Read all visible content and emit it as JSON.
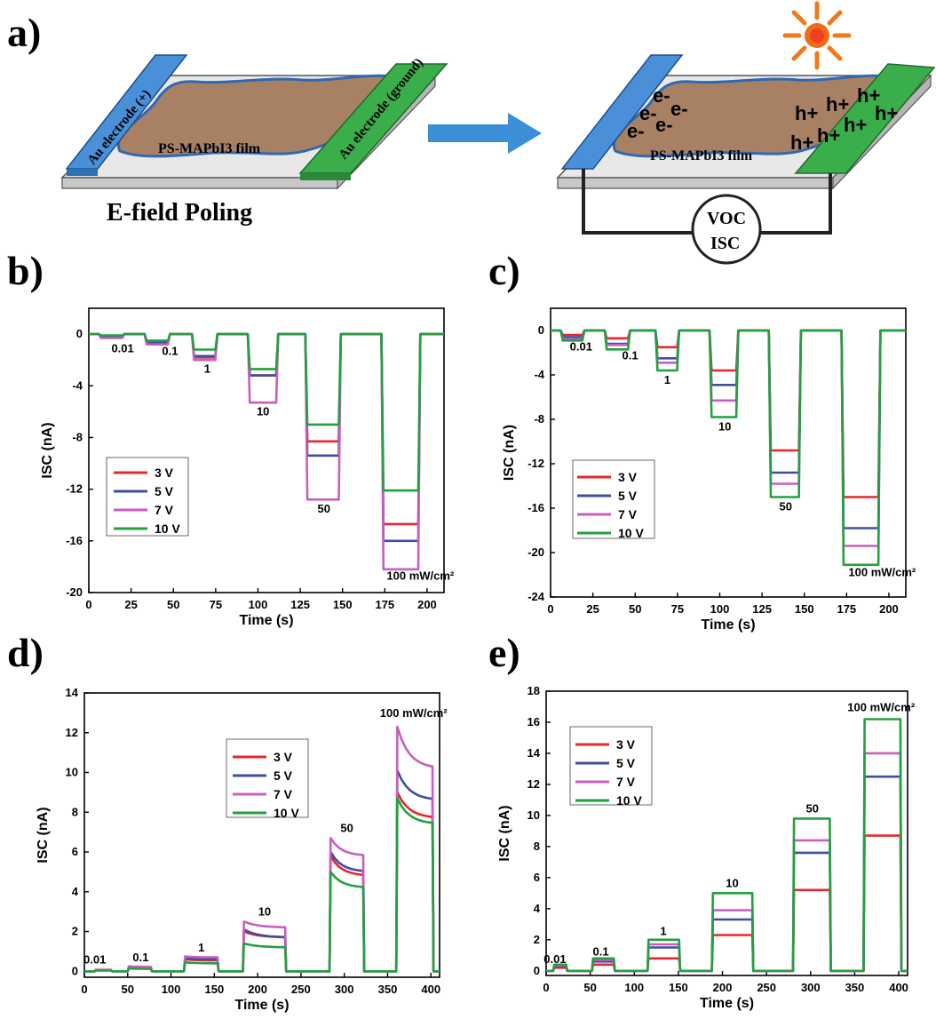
{
  "panel_labels": {
    "a": "a)",
    "b": "b)",
    "c": "c)",
    "d": "d)",
    "e": "e)"
  },
  "schematic": {
    "left": {
      "electrode_plus": "Au electrode (+)",
      "electrode_ground": "Au electrode (ground)",
      "film_label": "PS-MAPbI3 film",
      "caption": "E-field Poling"
    },
    "right": {
      "film_label": "PS-MAPbI3 film",
      "meter_line1": "VOC",
      "meter_line2": "ISC",
      "electrons": "e-",
      "holes": "h+"
    },
    "colors": {
      "electrode_left": "#4a90d9",
      "electrode_right": "#3aae4a",
      "film": "#9c6e4e",
      "arrow": "#3a8fd6",
      "sun": "#f07a1a"
    }
  },
  "series_colors": {
    "3 V": "#e8262c",
    "5 V": "#3e4fa3",
    "7 V": "#c85fc0",
    "10 V": "#23a03f"
  },
  "chart_data": [
    {
      "panel": "b",
      "type": "line",
      "xlabel": "Time (s)",
      "ylabel": "ISC (nA)",
      "xlim": [
        0,
        210
      ],
      "ylim": [
        -20,
        2
      ],
      "xticks": [
        0,
        25,
        50,
        75,
        100,
        125,
        150,
        175,
        200
      ],
      "yticks": [
        0,
        -4,
        -8,
        -12,
        -16,
        -20
      ],
      "intensity_labels": [
        "0.01",
        "0.1",
        "1",
        "10",
        "50",
        "100 mW/cm²"
      ],
      "pulses": [
        [
          6,
          21
        ],
        [
          33,
          48
        ],
        [
          61,
          76
        ],
        [
          94,
          112
        ],
        [
          128,
          149
        ],
        [
          173,
          196
        ]
      ],
      "series": [
        {
          "name": "3 V",
          "levels": [
            -0.2,
            -0.6,
            -1.8,
            -3.2,
            -8.3,
            -14.7
          ]
        },
        {
          "name": "5 V",
          "levels": [
            -0.2,
            -0.7,
            -1.7,
            -3.2,
            -9.4,
            -16.0
          ]
        },
        {
          "name": "7 V",
          "levels": [
            -0.3,
            -0.8,
            -2.0,
            -5.3,
            -12.8,
            -18.2
          ]
        },
        {
          "name": "10 V",
          "levels": [
            -0.1,
            -0.5,
            -1.2,
            -2.7,
            -7.0,
            -12.1
          ]
        }
      ]
    },
    {
      "panel": "c",
      "type": "line",
      "xlabel": "Time (s)",
      "ylabel": "ISC (nA)",
      "xlim": [
        0,
        210
      ],
      "ylim": [
        -24,
        2
      ],
      "xticks": [
        0,
        25,
        50,
        75,
        100,
        125,
        150,
        175,
        200
      ],
      "yticks": [
        0,
        -4,
        -8,
        -12,
        -16,
        -20,
        -24
      ],
      "intensity_labels": [
        "0.01",
        "0.1",
        "1",
        "10",
        "50",
        "100 mW/cm²"
      ],
      "pulses": [
        [
          6,
          20
        ],
        [
          32,
          47
        ],
        [
          62,
          76
        ],
        [
          94,
          111
        ],
        [
          129,
          148
        ],
        [
          172,
          195
        ]
      ],
      "series": [
        {
          "name": "3 V",
          "levels": [
            -0.4,
            -0.7,
            -1.5,
            -3.6,
            -10.8,
            -15.0
          ]
        },
        {
          "name": "5 V",
          "levels": [
            -0.6,
            -1.2,
            -2.5,
            -4.9,
            -12.8,
            -17.8
          ]
        },
        {
          "name": "7 V",
          "levels": [
            -0.8,
            -1.3,
            -2.9,
            -6.3,
            -13.8,
            -19.4
          ]
        },
        {
          "name": "10 V",
          "levels": [
            -0.9,
            -1.7,
            -3.6,
            -7.8,
            -15.0,
            -21.1
          ]
        }
      ]
    },
    {
      "panel": "d",
      "type": "line",
      "xlabel": "Time (s)",
      "ylabel": "ISC (nA)",
      "xlim": [
        0,
        410
      ],
      "ylim": [
        -0.3,
        14
      ],
      "xticks": [
        0,
        50,
        100,
        150,
        200,
        250,
        300,
        350,
        400
      ],
      "yticks": [
        0,
        2,
        4,
        6,
        8,
        10,
        12,
        14
      ],
      "intensity_labels": [
        "0.01",
        "0.1",
        "1",
        "10",
        "50",
        "100 mW/cm²"
      ],
      "pulses": [
        [
          12,
          32
        ],
        [
          50,
          78
        ],
        [
          115,
          155
        ],
        [
          183,
          233
        ],
        [
          283,
          323
        ],
        [
          360,
          403
        ]
      ],
      "series": [
        {
          "name": "3 V",
          "peaks": [
            0.05,
            0.15,
            0.6,
            2.0,
            5.8,
            9.0
          ],
          "ends": [
            0.05,
            0.15,
            0.55,
            1.7,
            4.8,
            7.7
          ]
        },
        {
          "name": "5 V",
          "peaks": [
            0.05,
            0.2,
            0.65,
            2.1,
            6.0,
            10.1
          ],
          "ends": [
            0.05,
            0.2,
            0.6,
            1.7,
            5.0,
            8.6
          ]
        },
        {
          "name": "7 V",
          "peaks": [
            0.08,
            0.25,
            0.75,
            2.5,
            6.7,
            12.3
          ],
          "ends": [
            0.08,
            0.22,
            0.7,
            2.2,
            5.8,
            10.2
          ]
        },
        {
          "name": "10 V",
          "peaks": [
            0.04,
            0.15,
            0.45,
            1.4,
            5.0,
            8.7
          ],
          "ends": [
            0.04,
            0.12,
            0.4,
            1.2,
            4.2,
            7.4
          ]
        }
      ]
    },
    {
      "panel": "e",
      "type": "line",
      "xlabel": "Time (s)",
      "ylabel": "ISC (nA)",
      "xlim": [
        0,
        410
      ],
      "ylim": [
        -0.3,
        18
      ],
      "xticks": [
        0,
        50,
        100,
        150,
        200,
        250,
        300,
        350,
        400
      ],
      "yticks": [
        0,
        2,
        4,
        6,
        8,
        10,
        12,
        14,
        16,
        18
      ],
      "intensity_labels": [
        "0.01",
        "0.1",
        "1",
        "10",
        "50",
        "100 mW/cm²"
      ],
      "pulses": [
        [
          8,
          24
        ],
        [
          52,
          78
        ],
        [
          115,
          152
        ],
        [
          188,
          235
        ],
        [
          280,
          323
        ],
        [
          360,
          403
        ]
      ],
      "series": [
        {
          "name": "3 V",
          "levels": [
            0.2,
            0.4,
            0.8,
            2.3,
            5.2,
            8.7
          ]
        },
        {
          "name": "5 V",
          "levels": [
            0.3,
            0.6,
            1.5,
            3.3,
            7.6,
            12.5
          ]
        },
        {
          "name": "7 V",
          "levels": [
            0.35,
            0.7,
            1.7,
            3.9,
            8.4,
            14.0
          ]
        },
        {
          "name": "10 V",
          "levels": [
            0.4,
            0.8,
            2.0,
            5.0,
            9.8,
            16.2
          ]
        }
      ]
    }
  ]
}
